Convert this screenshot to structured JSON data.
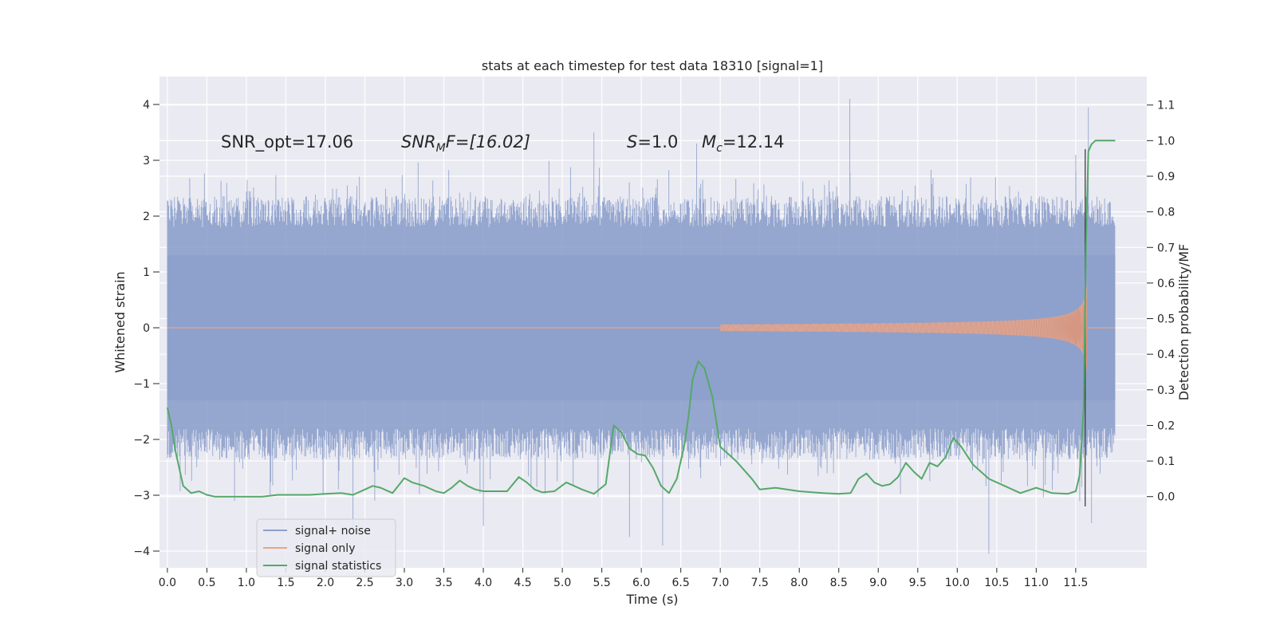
{
  "chart_data": {
    "type": "line",
    "title": "stats at each timestep for test data 18310 [signal=1]",
    "xlabel": "Time (s)",
    "ylabel": "Whitened strain",
    "y2label": "Detection probability/MF",
    "xlim": [
      -0.1,
      12.4
    ],
    "ylim": [
      -4.3,
      4.5
    ],
    "y2lim": [
      -0.2,
      1.18
    ],
    "xticks": [
      0.0,
      0.5,
      1.0,
      1.5,
      2.0,
      2.5,
      3.0,
      3.5,
      4.0,
      4.5,
      5.0,
      5.5,
      6.0,
      6.5,
      7.0,
      7.5,
      8.0,
      8.5,
      9.0,
      9.5,
      10.0,
      10.5,
      11.0,
      11.5
    ],
    "xtick_labels": [
      "0.0",
      "0.5",
      "1.0",
      "1.5",
      "2.0",
      "2.5",
      "3.0",
      "3.5",
      "4.0",
      "4.5",
      "5.0",
      "5.5",
      "6.0",
      "6.5",
      "7.0",
      "7.5",
      "8.0",
      "8.5",
      "9.0",
      "9.5",
      "10.0",
      "10.5",
      "11.0",
      "11.5"
    ],
    "yticks": [
      -4,
      -3,
      -2,
      -1,
      0,
      1,
      2,
      3,
      4
    ],
    "ytick_labels": [
      "−4",
      "−3",
      "−2",
      "−1",
      "0",
      "1",
      "2",
      "3",
      "4"
    ],
    "y2ticks": [
      0.0,
      0.1,
      0.2,
      0.3,
      0.4,
      0.5,
      0.6,
      0.7,
      0.8,
      0.9,
      1.0,
      1.1
    ],
    "y2tick_labels": [
      "0.0",
      "0.1",
      "0.2",
      "0.3",
      "0.4",
      "0.5",
      "0.6",
      "0.7",
      "0.8",
      "0.9",
      "1.0",
      "1.1"
    ],
    "grid": true,
    "legend_position": "lower-left",
    "annotations": {
      "snr_opt": "SNR_opt=17.06",
      "snr_mf_sym": "SNR",
      "snr_mf_sub": "M",
      "snr_mf_rest": "F=[16.02]",
      "s_sym": "S",
      "s_rest": "=1.0",
      "mc_sym": "M",
      "mc_sub": "c",
      "mc_rest": "=12.14"
    },
    "colors": {
      "background": "#eaeaf2",
      "grid": "#ffffff",
      "noise": "#8da0cb",
      "signal": "#e8a58a",
      "stats": "#55a868",
      "text": "#262626"
    },
    "series": [
      {
        "name": "signal+ noise",
        "kind": "noise",
        "t_range": [
          0.0,
          12.0
        ],
        "envelope": [
          1.3,
          -1.3
        ],
        "typical_peak_range": [
          1.8,
          2.6
        ],
        "extremes": [
          {
            "t": 8.64,
            "y": 4.1
          },
          {
            "t": 11.66,
            "y": 3.95
          },
          {
            "t": 5.4,
            "y": 3.5
          },
          {
            "t": 6.7,
            "y": 3.3
          },
          {
            "t": 11.5,
            "y": 3.1
          },
          {
            "t": 6.27,
            "y": -3.9
          },
          {
            "t": 10.4,
            "y": -4.05
          },
          {
            "t": 11.7,
            "y": -3.5
          },
          {
            "t": 2.35,
            "y": -3.6
          },
          {
            "t": 4.0,
            "y": -3.55
          },
          {
            "t": 5.85,
            "y": -3.75
          },
          {
            "t": 0.85,
            "y": -3.1
          }
        ]
      },
      {
        "name": "signal only",
        "kind": "chirp",
        "t_start": 7.0,
        "t_end": 11.65,
        "max_amplitude": 3.35
      },
      {
        "name": "signal statistics",
        "kind": "line",
        "axis": "y2",
        "x": [
          0.0,
          0.05,
          0.1,
          0.2,
          0.3,
          0.4,
          0.5,
          0.6,
          0.8,
          1.0,
          1.2,
          1.4,
          1.6,
          1.8,
          2.0,
          2.2,
          2.35,
          2.5,
          2.6,
          2.7,
          2.85,
          3.0,
          3.1,
          3.25,
          3.4,
          3.5,
          3.6,
          3.7,
          3.8,
          3.9,
          4.0,
          4.2,
          4.3,
          4.45,
          4.55,
          4.65,
          4.75,
          4.9,
          5.05,
          5.15,
          5.25,
          5.4,
          5.55,
          5.65,
          5.75,
          5.85,
          5.95,
          6.05,
          6.15,
          6.25,
          6.35,
          6.45,
          6.55,
          6.6,
          6.65,
          6.72,
          6.8,
          6.9,
          7.0,
          7.2,
          7.4,
          7.5,
          7.7,
          8.0,
          8.3,
          8.5,
          8.65,
          8.75,
          8.85,
          8.95,
          9.05,
          9.15,
          9.25,
          9.35,
          9.45,
          9.55,
          9.65,
          9.75,
          9.85,
          9.95,
          10.05,
          10.2,
          10.4,
          10.6,
          10.8,
          11.0,
          11.2,
          11.4,
          11.5,
          11.55,
          11.6,
          11.63,
          11.66,
          11.7,
          11.75,
          11.8,
          11.9,
          12.0
        ],
        "values": [
          0.25,
          0.2,
          0.13,
          0.03,
          0.01,
          0.015,
          0.005,
          0.0,
          0.0,
          0.0,
          0.0,
          0.005,
          0.005,
          0.005,
          0.008,
          0.01,
          0.005,
          0.02,
          0.03,
          0.025,
          0.01,
          0.052,
          0.04,
          0.03,
          0.015,
          0.01,
          0.025,
          0.045,
          0.03,
          0.02,
          0.015,
          0.015,
          0.015,
          0.055,
          0.04,
          0.02,
          0.012,
          0.015,
          0.04,
          0.03,
          0.02,
          0.008,
          0.035,
          0.2,
          0.18,
          0.135,
          0.12,
          0.115,
          0.08,
          0.03,
          0.01,
          0.05,
          0.15,
          0.23,
          0.33,
          0.38,
          0.36,
          0.28,
          0.14,
          0.1,
          0.05,
          0.02,
          0.025,
          0.015,
          0.01,
          0.008,
          0.01,
          0.05,
          0.065,
          0.04,
          0.03,
          0.035,
          0.055,
          0.095,
          0.07,
          0.05,
          0.095,
          0.085,
          0.11,
          0.165,
          0.14,
          0.09,
          0.05,
          0.03,
          0.01,
          0.025,
          0.01,
          0.008,
          0.015,
          0.06,
          0.25,
          0.7,
          0.97,
          0.99,
          1.0,
          1.0,
          1.0,
          1.0
        ]
      }
    ]
  }
}
